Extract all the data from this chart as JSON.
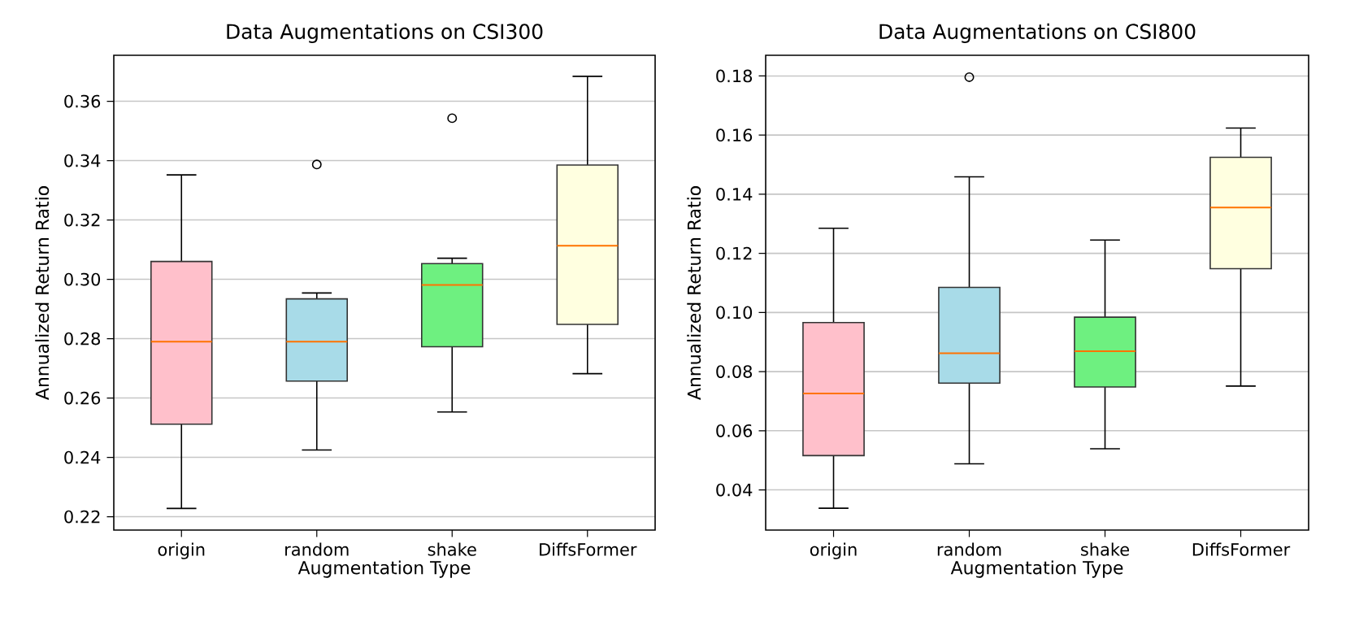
{
  "chart_data": [
    {
      "type": "box",
      "title": "Data Augmentations on CSI300",
      "xlabel": "Augmentation Type",
      "ylabel": "Annualized Return Ratio",
      "categories": [
        "origin",
        "random",
        "shake",
        "DiffsFormer"
      ],
      "colors": [
        "#ffc0cb",
        "#a8dbe8",
        "#6ef080",
        "#ffffe0"
      ],
      "boxes": [
        {
          "low": 0.2228,
          "q1": 0.2512,
          "median": 0.279,
          "q3": 0.306,
          "high": 0.3352
        },
        {
          "low": 0.2425,
          "q1": 0.2657,
          "median": 0.279,
          "q3": 0.2934,
          "high": 0.2954,
          "outliers": [
            0.3387
          ]
        },
        {
          "low": 0.2553,
          "q1": 0.2773,
          "median": 0.2981,
          "q3": 0.3053,
          "high": 0.3071,
          "outliers": [
            0.3543
          ]
        },
        {
          "low": 0.2682,
          "q1": 0.2848,
          "median": 0.3113,
          "q3": 0.3385,
          "high": 0.3684
        }
      ],
      "ylim": [
        0.2155,
        0.3755
      ],
      "yticks": [
        0.22,
        0.24,
        0.26,
        0.28,
        {
          "value": 0.3,
          "label": "0.30"
        },
        0.32,
        0.34,
        0.36
      ],
      "grid": "y"
    },
    {
      "type": "box",
      "title": "Data Augmentations on CSI800",
      "xlabel": "Augmentation Type",
      "ylabel": "Annualized Return Ratio",
      "categories": [
        "origin",
        "random",
        "shake",
        "DiffsFormer"
      ],
      "colors": [
        "#ffc0cb",
        "#a8dbe8",
        "#6ef080",
        "#ffffe0"
      ],
      "boxes": [
        {
          "low": 0.0338,
          "q1": 0.0516,
          "median": 0.0726,
          "q3": 0.0966,
          "high": 0.1285
        },
        {
          "low": 0.0488,
          "q1": 0.0761,
          "median": 0.0862,
          "q3": 0.1085,
          "high": 0.1459,
          "outliers": [
            0.1796
          ]
        },
        {
          "low": 0.0539,
          "q1": 0.0748,
          "median": 0.0869,
          "q3": 0.0984,
          "high": 0.1245
        },
        {
          "low": 0.0751,
          "q1": 0.1148,
          "median": 0.1355,
          "q3": 0.1525,
          "high": 0.1624
        }
      ],
      "ylim": [
        0.0264,
        0.187
      ],
      "yticks": [
        0.04,
        0.06,
        0.08,
        {
          "value": 0.1,
          "label": "0.10"
        },
        0.12,
        0.14,
        0.16,
        0.18
      ],
      "grid": "y"
    }
  ]
}
